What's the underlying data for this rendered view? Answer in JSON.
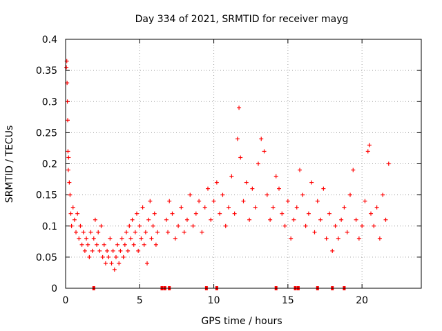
{
  "chart_data": {
    "type": "scatter",
    "title": "Day 334 of 2021, SRMTID for receiver mayg",
    "xlabel": "GPS time / hours",
    "ylabel": "SRMTID / TECUs",
    "xlim": [
      0,
      24
    ],
    "ylim": [
      0,
      0.4
    ],
    "xticks": [
      0,
      5,
      10,
      15,
      20
    ],
    "xtick_labels": [
      "0",
      "5",
      "10",
      "15",
      "20"
    ],
    "yticks": [
      0,
      0.05,
      0.1,
      0.15,
      0.2,
      0.25,
      0.3,
      0.35,
      0.4
    ],
    "ytick_labels": [
      "0",
      "0.05",
      "0.1",
      "0.15",
      "0.2",
      "0.25",
      "0.3",
      "0.35",
      "0.4"
    ],
    "grid": true,
    "marker": "+",
    "color": "#ff0000",
    "series": [
      {
        "name": "SRMTID",
        "points": [
          [
            0.05,
            0.355
          ],
          [
            0.08,
            0.365
          ],
          [
            0.1,
            0.33
          ],
          [
            0.12,
            0.3
          ],
          [
            0.14,
            0.27
          ],
          [
            0.16,
            0.22
          ],
          [
            0.18,
            0.19
          ],
          [
            0.2,
            0.21
          ],
          [
            0.25,
            0.17
          ],
          [
            0.3,
            0.15
          ],
          [
            0.35,
            0.12
          ],
          [
            0.4,
            0.1
          ],
          [
            0.5,
            0.13
          ],
          [
            0.6,
            0.11
          ],
          [
            0.7,
            0.09
          ],
          [
            0.8,
            0.12
          ],
          [
            0.9,
            0.08
          ],
          [
            1.0,
            0.1
          ],
          [
            1.1,
            0.07
          ],
          [
            1.2,
            0.09
          ],
          [
            1.3,
            0.06
          ],
          [
            1.4,
            0.08
          ],
          [
            1.5,
            0.07
          ],
          [
            1.6,
            0.05
          ],
          [
            1.7,
            0.09
          ],
          [
            1.8,
            0.06
          ],
          [
            1.9,
            0.08
          ],
          [
            2.0,
            0.11
          ],
          [
            2.1,
            0.07
          ],
          [
            2.2,
            0.09
          ],
          [
            2.3,
            0.06
          ],
          [
            2.4,
            0.1
          ],
          [
            2.5,
            0.05
          ],
          [
            2.6,
            0.07
          ],
          [
            2.7,
            0.04
          ],
          [
            2.8,
            0.06
          ],
          [
            2.9,
            0.05
          ],
          [
            3.0,
            0.08
          ],
          [
            3.1,
            0.04
          ],
          [
            3.2,
            0.06
          ],
          [
            3.3,
            0.03
          ],
          [
            3.4,
            0.05
          ],
          [
            3.5,
            0.07
          ],
          [
            3.6,
            0.04
          ],
          [
            3.7,
            0.06
          ],
          [
            3.8,
            0.08
          ],
          [
            3.9,
            0.05
          ],
          [
            4.0,
            0.07
          ],
          [
            4.1,
            0.09
          ],
          [
            4.2,
            0.06
          ],
          [
            4.3,
            0.1
          ],
          [
            4.4,
            0.08
          ],
          [
            4.5,
            0.11
          ],
          [
            4.6,
            0.07
          ],
          [
            4.7,
            0.09
          ],
          [
            4.8,
            0.12
          ],
          [
            4.9,
            0.06
          ],
          [
            5.0,
            0.1
          ],
          [
            5.1,
            0.08
          ],
          [
            5.2,
            0.13
          ],
          [
            5.3,
            0.07
          ],
          [
            5.4,
            0.09
          ],
          [
            5.5,
            0.04
          ],
          [
            5.6,
            0.11
          ],
          [
            5.7,
            0.14
          ],
          [
            5.8,
            0.08
          ],
          [
            5.9,
            0.1
          ],
          [
            6.0,
            0.12
          ],
          [
            6.1,
            0.07
          ],
          [
            6.2,
            0.09
          ],
          [
            6.8,
            0.11
          ],
          [
            6.9,
            0.09
          ],
          [
            7.0,
            0.14
          ],
          [
            7.2,
            0.12
          ],
          [
            7.4,
            0.08
          ],
          [
            7.6,
            0.1
          ],
          [
            7.8,
            0.13
          ],
          [
            8.0,
            0.09
          ],
          [
            8.2,
            0.11
          ],
          [
            8.4,
            0.15
          ],
          [
            8.6,
            0.1
          ],
          [
            8.8,
            0.12
          ],
          [
            9.0,
            0.14
          ],
          [
            9.2,
            0.09
          ],
          [
            9.4,
            0.13
          ],
          [
            9.6,
            0.16
          ],
          [
            9.8,
            0.11
          ],
          [
            10.0,
            0.14
          ],
          [
            10.2,
            0.17
          ],
          [
            10.4,
            0.12
          ],
          [
            10.6,
            0.15
          ],
          [
            10.8,
            0.1
          ],
          [
            11.0,
            0.13
          ],
          [
            11.2,
            0.18
          ],
          [
            11.4,
            0.12
          ],
          [
            11.6,
            0.24
          ],
          [
            11.7,
            0.29
          ],
          [
            11.8,
            0.21
          ],
          [
            12.0,
            0.14
          ],
          [
            12.2,
            0.17
          ],
          [
            12.4,
            0.11
          ],
          [
            12.6,
            0.16
          ],
          [
            12.8,
            0.13
          ],
          [
            13.0,
            0.2
          ],
          [
            13.2,
            0.24
          ],
          [
            13.4,
            0.22
          ],
          [
            13.6,
            0.15
          ],
          [
            13.8,
            0.11
          ],
          [
            14.0,
            0.13
          ],
          [
            14.2,
            0.18
          ],
          [
            14.4,
            0.16
          ],
          [
            14.6,
            0.12
          ],
          [
            14.8,
            0.1
          ],
          [
            15.0,
            0.14
          ],
          [
            15.2,
            0.08
          ],
          [
            15.4,
            0.11
          ],
          [
            15.6,
            0.13
          ],
          [
            15.8,
            0.19
          ],
          [
            16.0,
            0.15
          ],
          [
            16.2,
            0.1
          ],
          [
            16.4,
            0.12
          ],
          [
            16.6,
            0.17
          ],
          [
            16.8,
            0.09
          ],
          [
            17.0,
            0.14
          ],
          [
            17.2,
            0.11
          ],
          [
            17.4,
            0.16
          ],
          [
            17.6,
            0.08
          ],
          [
            17.8,
            0.12
          ],
          [
            18.0,
            0.06
          ],
          [
            18.2,
            0.1
          ],
          [
            18.4,
            0.08
          ],
          [
            18.6,
            0.11
          ],
          [
            18.8,
            0.13
          ],
          [
            19.0,
            0.09
          ],
          [
            19.2,
            0.15
          ],
          [
            19.4,
            0.19
          ],
          [
            19.6,
            0.11
          ],
          [
            19.8,
            0.08
          ],
          [
            20.0,
            0.1
          ],
          [
            20.2,
            0.14
          ],
          [
            20.4,
            0.22
          ],
          [
            20.5,
            0.23
          ],
          [
            20.6,
            0.12
          ],
          [
            20.8,
            0.1
          ],
          [
            21.0,
            0.13
          ],
          [
            21.2,
            0.08
          ],
          [
            21.4,
            0.15
          ],
          [
            21.6,
            0.11
          ],
          [
            21.8,
            0.2
          ]
        ]
      }
    ],
    "zero_markers_x": [
      1.9,
      6.5,
      6.7,
      7.0,
      9.5,
      10.2,
      14.2,
      15.5,
      15.7,
      17.0,
      18.0,
      18.8
    ]
  }
}
